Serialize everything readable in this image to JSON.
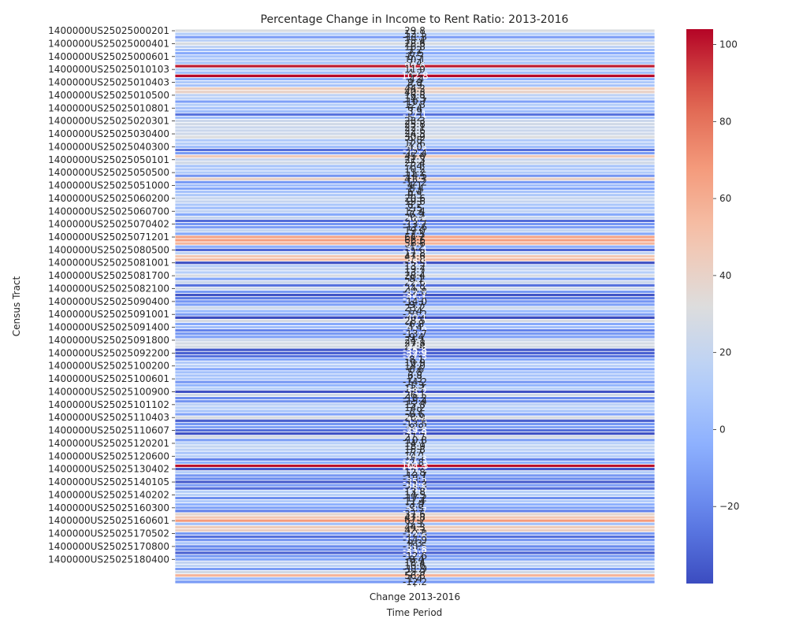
{
  "chart_data": {
    "type": "heatmap",
    "title": "Percentage Change in Income to Rent Ratio: 2013-2016",
    "xlabel": "Time Period",
    "ylabel": "Census Tract",
    "columns": [
      "Change 2013-2016"
    ],
    "colormap": "coolwarm",
    "vmin": -40,
    "vmax": 104,
    "colorbar_ticks": [
      -20,
      0,
      20,
      40,
      60,
      80,
      100
    ],
    "rows": [
      {
        "tract": "1400000US25025000201",
        "value": 29.8
      },
      {
        "tract": "",
        "value": 12.1
      },
      {
        "tract": "",
        "value": -11.3
      },
      {
        "tract": "",
        "value": 15.4
      },
      {
        "tract": "1400000US25025000401",
        "value": 28.6
      },
      {
        "tract": "",
        "value": 16.8
      },
      {
        "tract": "",
        "value": 3.2
      },
      {
        "tract": "",
        "value": -6.5
      },
      {
        "tract": "1400000US25025000601",
        "value": 6.5
      },
      {
        "tract": "",
        "value": 10.1
      },
      {
        "tract": "",
        "value": 7.4
      },
      {
        "tract": "",
        "value": 99.6
      },
      {
        "tract": "1400000US25025010103",
        "value": 11.9
      },
      {
        "tract": "",
        "value": 4.2
      },
      {
        "tract": "",
        "value": 102.8
      },
      {
        "tract": "",
        "value": -4.4
      },
      {
        "tract": "1400000US25025010403",
        "value": 9.9
      },
      {
        "tract": "",
        "value": 6.9
      },
      {
        "tract": "",
        "value": 44.2
      },
      {
        "tract": "",
        "value": 40.3
      },
      {
        "tract": "1400000US25025010500",
        "value": 16.8
      },
      {
        "tract": "",
        "value": 14.3
      },
      {
        "tract": "",
        "value": -10.7
      },
      {
        "tract": "",
        "value": 12.8
      },
      {
        "tract": "1400000US25025010801",
        "value": 6.4
      },
      {
        "tract": "",
        "value": 3.9
      },
      {
        "tract": "",
        "value": -27.1
      },
      {
        "tract": "",
        "value": 5.2
      },
      {
        "tract": "1400000US25025020301",
        "value": 23.3
      },
      {
        "tract": "",
        "value": 25.8
      },
      {
        "tract": "",
        "value": 22.1
      },
      {
        "tract": "",
        "value": 22.6
      },
      {
        "tract": "1400000US25025030400",
        "value": 24.5
      },
      {
        "tract": "",
        "value": 30.9
      },
      {
        "tract": "",
        "value": 9.8
      },
      {
        "tract": "",
        "value": 12.6
      },
      {
        "tract": "1400000US25025040300",
        "value": 4.0
      },
      {
        "tract": "",
        "value": -28.3
      },
      {
        "tract": "",
        "value": -12.4
      },
      {
        "tract": "",
        "value": 45.6
      },
      {
        "tract": "1400000US25025050101",
        "value": 21.3
      },
      {
        "tract": "",
        "value": 25.4
      },
      {
        "tract": "",
        "value": 7.4
      },
      {
        "tract": "",
        "value": 10.2
      },
      {
        "tract": "1400000US25025050500",
        "value": 11.2
      },
      {
        "tract": "",
        "value": -14.5
      },
      {
        "tract": "",
        "value": 41.3
      },
      {
        "tract": "",
        "value": -12.2
      },
      {
        "tract": "1400000US25025051000",
        "value": 4.1
      },
      {
        "tract": "",
        "value": -8.4
      },
      {
        "tract": "",
        "value": 6.4
      },
      {
        "tract": "",
        "value": 9.5
      },
      {
        "tract": "1400000US25025060200",
        "value": 20.6
      },
      {
        "tract": "",
        "value": 19.6
      },
      {
        "tract": "",
        "value": 8.2
      },
      {
        "tract": "",
        "value": 2.5
      },
      {
        "tract": "1400000US25025060700",
        "value": 17.4
      },
      {
        "tract": "",
        "value": -6.9
      },
      {
        "tract": "",
        "value": 20.2
      },
      {
        "tract": "",
        "value": -29.5
      },
      {
        "tract": "1400000US25025070402",
        "value": -13.7
      },
      {
        "tract": "",
        "value": -11.6
      },
      {
        "tract": "",
        "value": 19.0
      },
      {
        "tract": "",
        "value": -7.3
      },
      {
        "tract": "1400000US25025071201",
        "value": 64.2
      },
      {
        "tract": "",
        "value": 66.6
      },
      {
        "tract": "",
        "value": 56.6
      },
      {
        "tract": "",
        "value": -4.2
      },
      {
        "tract": "1400000US25025080500",
        "value": -31.4
      },
      {
        "tract": "",
        "value": 17.8
      },
      {
        "tract": "",
        "value": 47.6
      },
      {
        "tract": "",
        "value": 52.8
      },
      {
        "tract": "1400000US25025081001",
        "value": -38.5
      },
      {
        "tract": "",
        "value": 13.2
      },
      {
        "tract": "",
        "value": 19.7
      },
      {
        "tract": "",
        "value": 13.2
      },
      {
        "tract": "1400000US25025081700",
        "value": 28.4
      },
      {
        "tract": "",
        "value": -8.1
      },
      {
        "tract": "",
        "value": 22.6
      },
      {
        "tract": "",
        "value": -27.2
      },
      {
        "tract": "1400000US25025082100",
        "value": 24.9
      },
      {
        "tract": "",
        "value": -12.8
      },
      {
        "tract": "",
        "value": -37.7
      },
      {
        "tract": "",
        "value": -25.1
      },
      {
        "tract": "1400000US25025090400",
        "value": -14.0
      },
      {
        "tract": "",
        "value": -9.7
      },
      {
        "tract": "",
        "value": 23.2
      },
      {
        "tract": "",
        "value": 1.4
      },
      {
        "tract": "1400000US25025091001",
        "value": -10.2
      },
      {
        "tract": "",
        "value": -40.1
      },
      {
        "tract": "",
        "value": 28.5
      },
      {
        "tract": "",
        "value": -6.8
      },
      {
        "tract": "1400000US25025091400",
        "value": 4.4
      },
      {
        "tract": "",
        "value": -21.9
      },
      {
        "tract": "",
        "value": -13.7
      },
      {
        "tract": "",
        "value": -9.4
      },
      {
        "tract": "1400000US25025091800",
        "value": 24.1
      },
      {
        "tract": "",
        "value": 27.8
      },
      {
        "tract": "",
        "value": 27.4
      },
      {
        "tract": "",
        "value": -35.8
      },
      {
        "tract": "1400000US25025092200",
        "value": -32.9
      },
      {
        "tract": "",
        "value": -27.3
      },
      {
        "tract": "",
        "value": -8.1
      },
      {
        "tract": "",
        "value": 10.9
      },
      {
        "tract": "1400000US25025100200",
        "value": 14.0
      },
      {
        "tract": "",
        "value": -6.6
      },
      {
        "tract": "",
        "value": 5.8
      },
      {
        "tract": "",
        "value": 6.8
      },
      {
        "tract": "1400000US25025100601",
        "value": 7.3
      },
      {
        "tract": "",
        "value": -14.2
      },
      {
        "tract": "",
        "value": -1.3
      },
      {
        "tract": "",
        "value": 13.7
      },
      {
        "tract": "1400000US25025100900",
        "value": -38.2
      },
      {
        "tract": "",
        "value": 26.1
      },
      {
        "tract": "",
        "value": -18.2
      },
      {
        "tract": "",
        "value": -15.4
      },
      {
        "tract": "1400000US25025101102",
        "value": 15.8
      },
      {
        "tract": "",
        "value": 14.2
      },
      {
        "tract": "",
        "value": 7.9
      },
      {
        "tract": "",
        "value": -8.6
      },
      {
        "tract": "1400000US25025110403",
        "value": 28.9
      },
      {
        "tract": "",
        "value": -33.6
      },
      {
        "tract": "",
        "value": -13.5
      },
      {
        "tract": "",
        "value": -9.9
      },
      {
        "tract": "1400000US25025110607",
        "value": -29.8
      },
      {
        "tract": "",
        "value": -37.9
      },
      {
        "tract": "",
        "value": 27.7
      },
      {
        "tract": "",
        "value": -10.8
      },
      {
        "tract": "1400000US25025120201",
        "value": 14.1
      },
      {
        "tract": "",
        "value": 18.9
      },
      {
        "tract": "",
        "value": 15.8
      },
      {
        "tract": "",
        "value": 7.7
      },
      {
        "tract": "1400000US25025120600",
        "value": 14.1
      },
      {
        "tract": "",
        "value": -21.3
      },
      {
        "tract": "",
        "value": -2.8
      },
      {
        "tract": "",
        "value": 101.3
      },
      {
        "tract": "1400000US25025130402",
        "value": -36.2
      },
      {
        "tract": "",
        "value": 12.8
      },
      {
        "tract": "",
        "value": -13.7
      },
      {
        "tract": "",
        "value": -18.1
      },
      {
        "tract": "1400000US25025140105",
        "value": -35.2
      },
      {
        "tract": "",
        "value": -11.3
      },
      {
        "tract": "",
        "value": -28.6
      },
      {
        "tract": "",
        "value": 13.8
      },
      {
        "tract": "1400000US25025140202",
        "value": 14.5
      },
      {
        "tract": "",
        "value": -17.2
      },
      {
        "tract": "",
        "value": 11.4
      },
      {
        "tract": "",
        "value": -3.9
      },
      {
        "tract": "1400000US25025160300",
        "value": -9.9
      },
      {
        "tract": "",
        "value": -21.7
      },
      {
        "tract": "",
        "value": 37.6
      },
      {
        "tract": "",
        "value": 47.8
      },
      {
        "tract": "1400000US25025160601",
        "value": 67.7
      },
      {
        "tract": "",
        "value": 5.3
      },
      {
        "tract": "",
        "value": 44.3
      },
      {
        "tract": "",
        "value": 42.3
      },
      {
        "tract": "1400000US25025170502",
        "value": -12.8
      },
      {
        "tract": "",
        "value": -27.6
      },
      {
        "tract": "",
        "value": -14.9
      },
      {
        "tract": "",
        "value": 9.3
      },
      {
        "tract": "1400000US25025170800",
        "value": -18.5
      },
      {
        "tract": "",
        "value": -21.8
      },
      {
        "tract": "",
        "value": -32.7
      },
      {
        "tract": "",
        "value": -12.6
      },
      {
        "tract": "1400000US25025180400",
        "value": -8.4
      },
      {
        "tract": "",
        "value": 18.4
      },
      {
        "tract": "",
        "value": 16.6
      },
      {
        "tract": "",
        "value": -11.9
      },
      {
        "tract": "",
        "value": 25.9
      },
      {
        "tract": "",
        "value": 56.8
      },
      {
        "tract": "",
        "value": 1.4
      },
      {
        "tract": "",
        "value": -12.2
      }
    ]
  }
}
